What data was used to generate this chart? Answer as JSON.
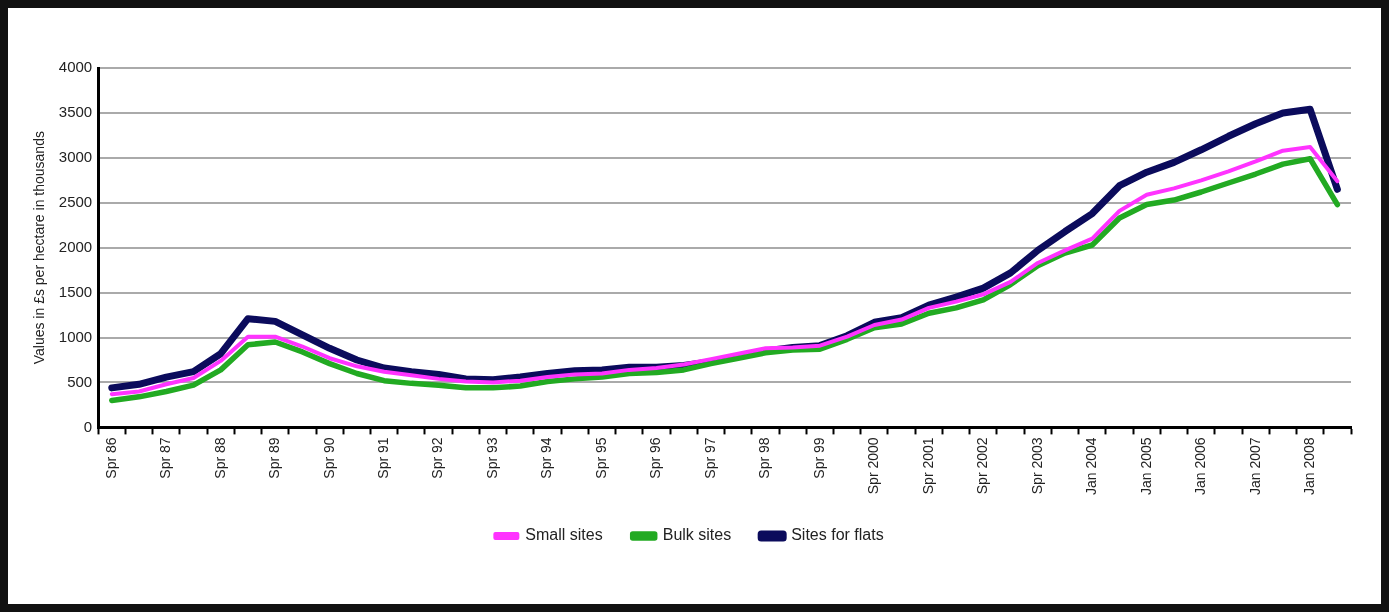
{
  "chart_data": {
    "type": "line",
    "ylabel": "Values in £s per hectare in thousands",
    "categories": [
      "Spr 86",
      null,
      "Spr 87",
      null,
      "Spr 88",
      null,
      "Spr 89",
      null,
      "Spr 90",
      null,
      "Spr 91",
      null,
      "Spr 92",
      null,
      "Spr 93",
      null,
      "Spr 94",
      null,
      "Spr 95",
      null,
      "Spr 96",
      null,
      "Spr 97",
      null,
      "Spr 98",
      null,
      "Spr 99",
      null,
      "Spr 2000",
      null,
      "Spr 2001",
      null,
      "Spr 2002",
      null,
      "Spr 2003",
      null,
      "Jan 2004",
      null,
      "Jan 2005",
      null,
      "Jan 2006",
      null,
      "Jan 2007",
      null,
      "Jan 2008",
      null
    ],
    "series": [
      {
        "name": "Small sites",
        "color": "#ff33ff",
        "values": [
          370,
          400,
          480,
          550,
          740,
          1010,
          1010,
          900,
          770,
          680,
          620,
          580,
          540,
          510,
          500,
          520,
          560,
          590,
          600,
          640,
          660,
          700,
          760,
          820,
          880,
          890,
          910,
          1010,
          1140,
          1200,
          1330,
          1400,
          1480,
          1620,
          1830,
          1970,
          2100,
          2410,
          2590,
          2660,
          2750,
          2850,
          2960,
          3080,
          3120,
          2740
        ]
      },
      {
        "name": "Bulk sites",
        "color": "#22aa22",
        "values": [
          300,
          340,
          400,
          470,
          640,
          920,
          950,
          840,
          710,
          600,
          520,
          490,
          470,
          440,
          440,
          460,
          510,
          540,
          560,
          600,
          610,
          640,
          710,
          770,
          830,
          860,
          870,
          980,
          1110,
          1150,
          1270,
          1330,
          1420,
          1590,
          1800,
          1940,
          2030,
          2330,
          2480,
          2530,
          2620,
          2720,
          2820,
          2930,
          2990,
          2480
        ]
      },
      {
        "name": "Sites for flats",
        "color": "#0b0b5c",
        "values": [
          440,
          480,
          560,
          620,
          820,
          1210,
          1180,
          1030,
          880,
          750,
          660,
          620,
          590,
          540,
          530,
          560,
          600,
          630,
          640,
          670,
          670,
          690,
          730,
          790,
          850,
          890,
          910,
          1020,
          1170,
          1220,
          1360,
          1450,
          1550,
          1720,
          1970,
          2180,
          2380,
          2690,
          2840,
          2950,
          3090,
          3240,
          3380,
          3500,
          3540,
          2650
        ]
      }
    ],
    "ylim": [
      0,
      4000
    ],
    "yticks": [
      0,
      500,
      1000,
      1500,
      2000,
      2500,
      3000,
      3500,
      4000
    ],
    "grid": "y",
    "legend": "bottom",
    "marker": "none",
    "line_style": "solid"
  }
}
